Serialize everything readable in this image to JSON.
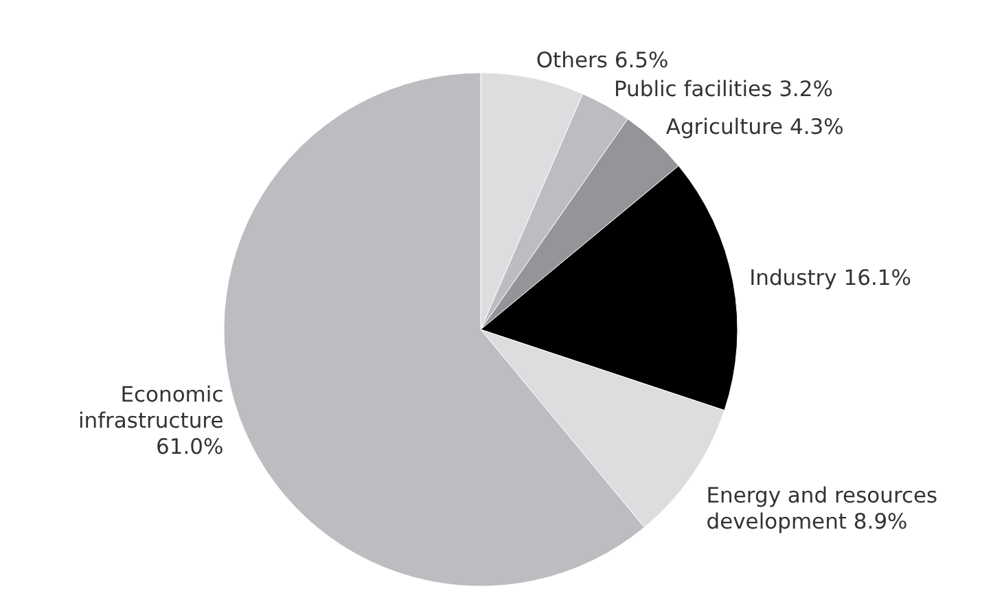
{
  "chart_data": {
    "type": "pie",
    "categories": [
      "Others",
      "Public facilities",
      "Agriculture",
      "Industry",
      "Energy and resources development",
      "Economic infrastructure"
    ],
    "values": [
      6.5,
      3.2,
      4.3,
      16.1,
      8.9,
      61.0
    ],
    "value_labels": [
      "6.5%",
      "3.2%",
      "4.3%",
      "16.1%",
      "8.9%",
      "61.0%"
    ],
    "colors": [
      "#dcdddf",
      "#bcbdc0",
      "#939598",
      "#000000",
      "#dcdddf",
      "#bcbdc0"
    ]
  }
}
